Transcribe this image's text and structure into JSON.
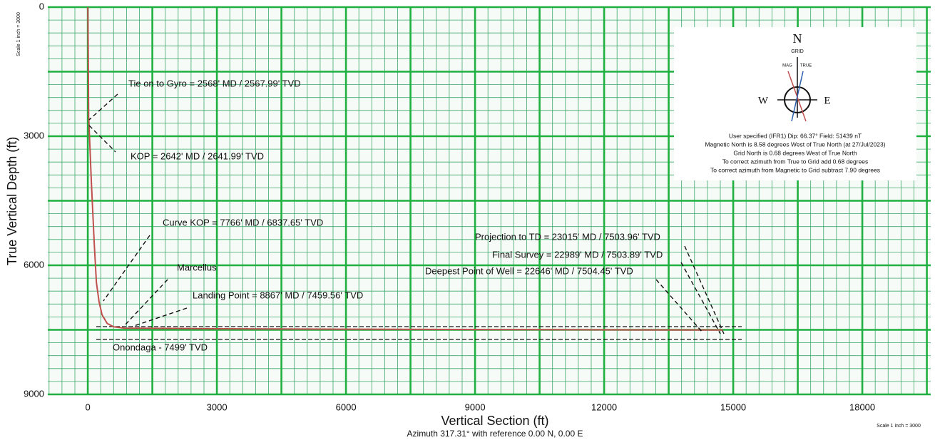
{
  "chart_data": {
    "type": "line",
    "xlabel": "Vertical Section (ft)",
    "ylabel": "True Vertical Depth (ft)",
    "subtitle": "Azimuth 317.31° with reference 0.00 N, 0.00 E",
    "scale_labels": [
      "Scale 1 inch = 3000",
      "Scale 1 inch = 3000"
    ],
    "xlim": [
      -930,
      19590
    ],
    "ylim": [
      9000,
      0
    ],
    "xticks": [
      0,
      3000,
      6000,
      9000,
      12000,
      15000,
      18000
    ],
    "yticks": [
      0,
      3000,
      6000,
      9000
    ],
    "grid": {
      "major": 1500,
      "minor": 300
    },
    "series": [
      {
        "color": "#c0504d",
        "x": [
          0,
          10,
          20,
          25,
          80,
          150,
          200,
          260,
          330,
          450,
          600,
          850,
          3000,
          6000,
          9000,
          12000,
          14300,
          14720,
          14760
        ],
        "values": [
          0,
          1000,
          2568,
          2642,
          4000,
          5500,
          6400,
          6838,
          7150,
          7350,
          7430,
          7460,
          7475,
          7485,
          7493,
          7500,
          7504.45,
          7503.89,
          7503.96
        ]
      }
    ],
    "annotations": [
      "Tie on to Gyro = 2568' MD / 2567.99' TVD",
      "KOP = 2642' MD / 2641.99' TVD",
      "Curve KOP = 7766' MD / 6837.65' TVD",
      "Marcellus",
      "Landing Point = 8867' MD / 7459.56' TVD",
      "Onondaga - 7499' TVD",
      "Projection to TD = 23015' MD / 7503.96' TVD",
      "Final Survey = 22989' MD / 7503.89' TVD",
      "Deepest Point of Well = 22646' MD / 7504.45' TVD"
    ],
    "compass": {
      "north": "N",
      "grid": "GRID",
      "mag": "MAG",
      "true": "TRUE",
      "west": "W",
      "east": "E",
      "notes": [
        "User specified (IFR1) Dip: 66.37°  Field: 51439 nT",
        "Magnetic North is 8.58 degrees West of True North (at 27/Jul/2023)",
        "Grid North is 0.68 degrees West of True North",
        "To correct azimuth from True to Grid add 0.68 degrees",
        "To correct azimuth from Magnetic to Grid subtract 7.90 degrees"
      ]
    }
  }
}
